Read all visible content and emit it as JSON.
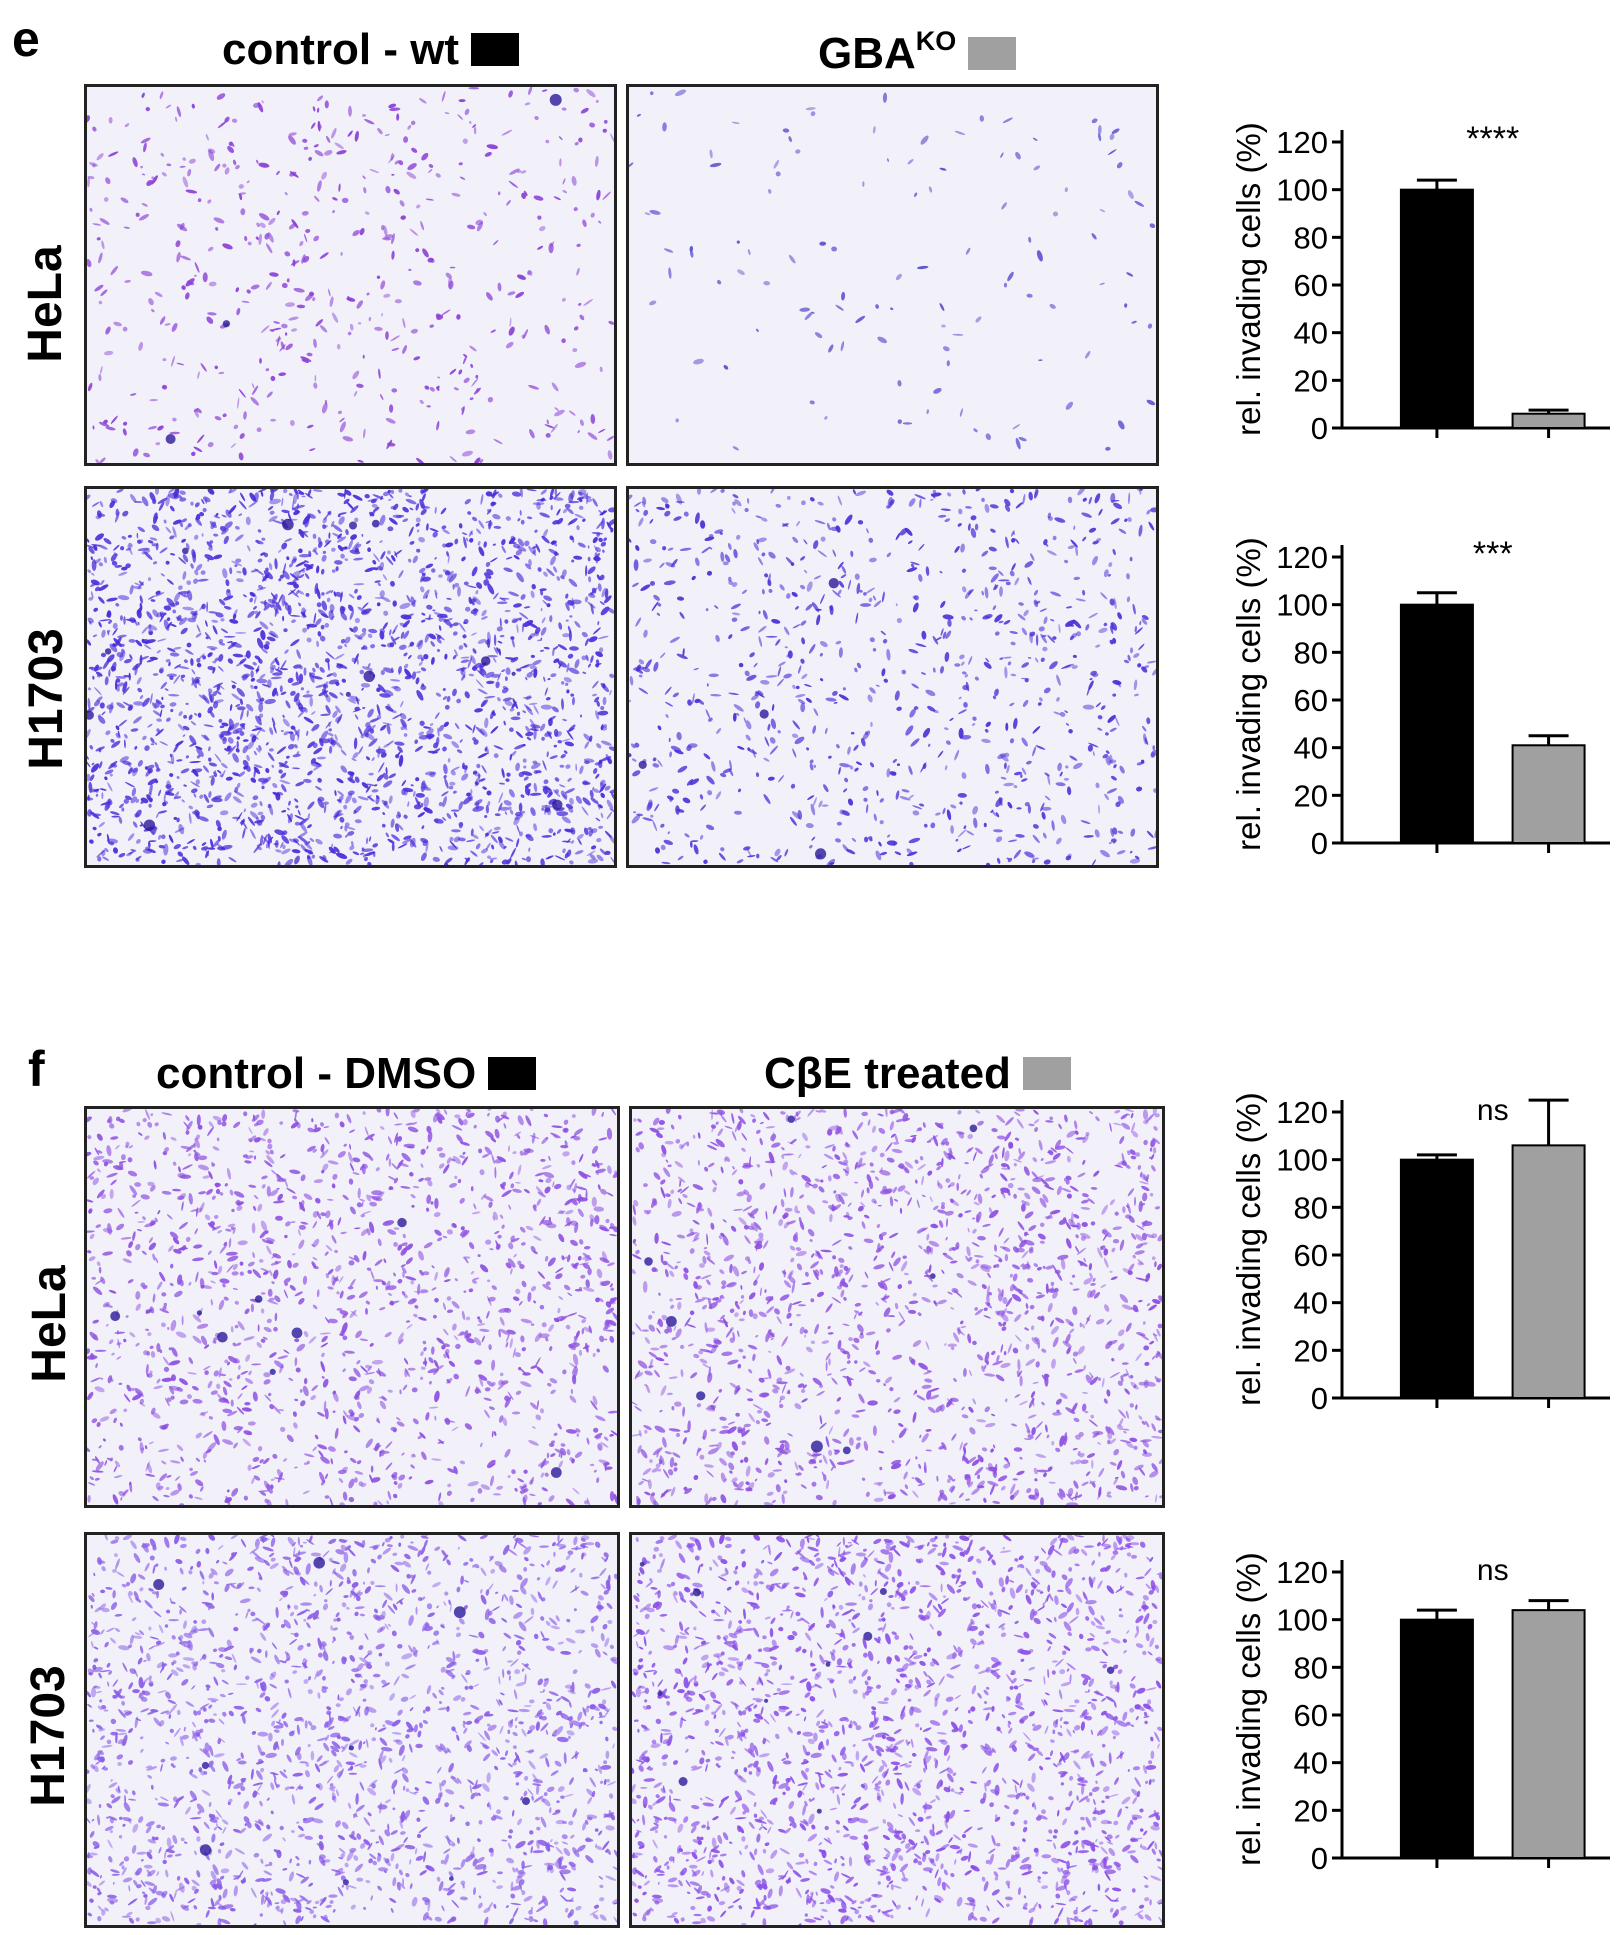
{
  "panels": [
    {
      "letter": "e",
      "columns": [
        {
          "label": "control - wt",
          "swatch_color": "#000000"
        },
        {
          "label": "GBA",
          "superscript": "KO",
          "swatch_color": "#a0a0a0"
        }
      ],
      "rows": [
        {
          "label": "HeLa",
          "images": [
            {
              "description": "sparse violet-stained invading cells",
              "stain_density": 0.18,
              "stain_color": "#8a3fd6"
            },
            {
              "description": "very few faint stained cells",
              "stain_density": 0.03,
              "stain_color": "#5a4fcf"
            }
          ]
        },
        {
          "label": "H1703",
          "images": [
            {
              "description": "dense blue-violet stained cells",
              "stain_density": 0.85,
              "stain_color": "#4b2bd8"
            },
            {
              "description": "moderate stained cells",
              "stain_density": 0.32,
              "stain_color": "#4a2fd6"
            }
          ]
        }
      ]
    },
    {
      "letter": "f",
      "columns": [
        {
          "label": "control - DMSO",
          "swatch_color": "#000000"
        },
        {
          "label": "CβE treated",
          "swatch_color": "#a0a0a0"
        }
      ],
      "rows": [
        {
          "label": "HeLa",
          "images": [
            {
              "description": "clustered violet-stained cells",
              "stain_density": 0.55,
              "stain_color": "#8d4fe0"
            },
            {
              "description": "clustered violet-stained cells",
              "stain_density": 0.6,
              "stain_color": "#8d4fe0"
            }
          ]
        },
        {
          "label": "H1703",
          "images": [
            {
              "description": "many light violet cells",
              "stain_density": 0.65,
              "stain_color": "#8a5ce6"
            },
            {
              "description": "many violet cells, denser center",
              "stain_density": 0.7,
              "stain_color": "#8a4fe6"
            }
          ]
        }
      ]
    }
  ],
  "chart_data": [
    {
      "type": "bar",
      "panel": "e",
      "row": "HeLa",
      "ylabel": "rel. invading cells (%)",
      "ylim": [
        0,
        120
      ],
      "yticks": [
        0,
        20,
        40,
        60,
        80,
        100,
        120
      ],
      "categories": [
        "control - wt",
        "GBA KO"
      ],
      "values": [
        100,
        6
      ],
      "errors": [
        4,
        1.5
      ],
      "colors": [
        "#000000",
        "#a0a0a0"
      ],
      "significance": "****"
    },
    {
      "type": "bar",
      "panel": "e",
      "row": "H1703",
      "ylabel": "rel. invading cells (%)",
      "ylim": [
        0,
        120
      ],
      "yticks": [
        0,
        20,
        40,
        60,
        80,
        100,
        120
      ],
      "categories": [
        "control - wt",
        "GBA KO"
      ],
      "values": [
        100,
        41
      ],
      "errors": [
        5,
        4
      ],
      "colors": [
        "#000000",
        "#a0a0a0"
      ],
      "significance": "***"
    },
    {
      "type": "bar",
      "panel": "f",
      "row": "HeLa",
      "ylabel": "rel. invading cells (%)",
      "ylim": [
        0,
        120
      ],
      "yticks": [
        0,
        20,
        40,
        60,
        80,
        100,
        120
      ],
      "categories": [
        "control - DMSO",
        "CβE treated"
      ],
      "values": [
        100,
        106
      ],
      "errors": [
        2,
        19
      ],
      "colors": [
        "#000000",
        "#a0a0a0"
      ],
      "significance": "ns"
    },
    {
      "type": "bar",
      "panel": "f",
      "row": "H1703",
      "ylabel": "rel. invading cells (%)",
      "ylim": [
        0,
        120
      ],
      "yticks": [
        0,
        20,
        40,
        60,
        80,
        100,
        120
      ],
      "categories": [
        "control - DMSO",
        "CβE treated"
      ],
      "values": [
        100,
        104
      ],
      "errors": [
        4,
        4
      ],
      "colors": [
        "#000000",
        "#a0a0a0"
      ],
      "significance": "ns"
    }
  ]
}
